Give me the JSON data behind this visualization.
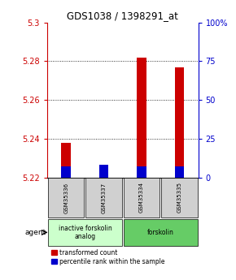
{
  "title": "GDS1038 / 1398291_at",
  "samples": [
    "GSM35336",
    "GSM35337",
    "GSM35334",
    "GSM35335"
  ],
  "red_values": [
    5.238,
    5.224,
    5.282,
    5.277
  ],
  "blue_values": [
    5.226,
    5.2265,
    5.226,
    5.226
  ],
  "base_value": 5.22,
  "ylim_left": [
    5.22,
    5.3
  ],
  "yticks_left": [
    5.22,
    5.24,
    5.26,
    5.28,
    5.3
  ],
  "yticks_right": [
    0,
    25,
    50,
    75,
    100
  ],
  "ylim_right": [
    0,
    100
  ],
  "agent_groups": [
    {
      "label": "inactive forskolin\nanalog",
      "indices": [
        0,
        1
      ],
      "color": "#ccffcc"
    },
    {
      "label": "forskolin",
      "indices": [
        2,
        3
      ],
      "color": "#66cc66"
    }
  ],
  "bar_width": 0.25,
  "red_color": "#cc0000",
  "blue_color": "#0000cc",
  "grid_color": "black",
  "left_axis_color": "#cc0000",
  "right_axis_color": "#0000cc",
  "background_color": "#ffffff",
  "sample_box_color": "#d0d0d0",
  "legend_red_label": "transformed count",
  "legend_blue_label": "percentile rank within the sample"
}
